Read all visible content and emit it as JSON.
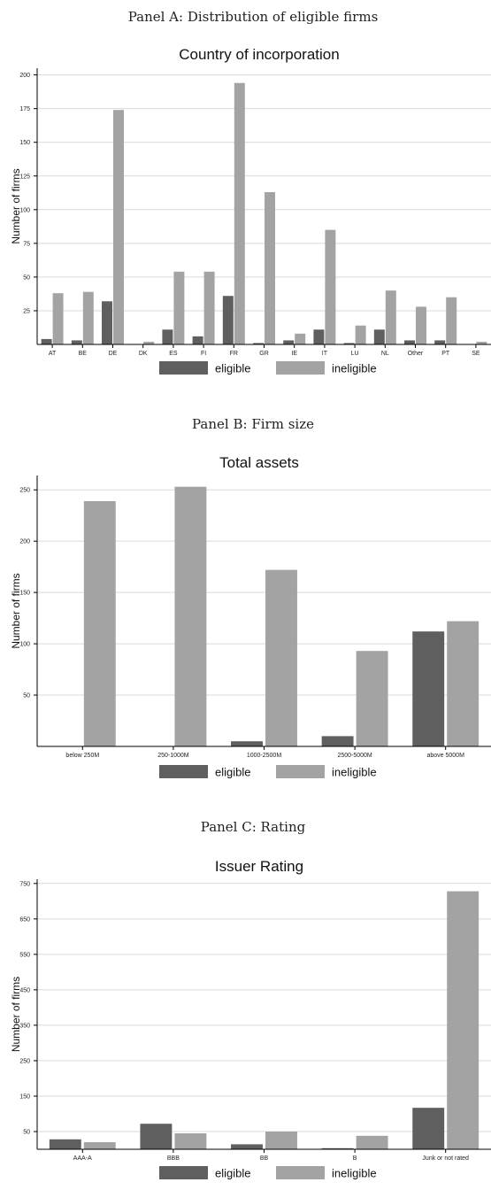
{
  "colors": {
    "eligible": "#5f5f5f",
    "ineligible": "#a3a3a3"
  },
  "panels": [
    {
      "panel_title": "Panel A: Distribution of eligible firms"
    },
    {
      "panel_title": "Panel B: Firm size"
    },
    {
      "panel_title": "Panel C: Rating"
    }
  ],
  "chart_data": [
    {
      "type": "bar",
      "title": "Country of incorporation",
      "ylabel": "Number of firms",
      "xlabel": "",
      "categories": [
        "AT",
        "BE",
        "DE",
        "DK",
        "ES",
        "FI",
        "FR",
        "GR",
        "IE",
        "IT",
        "LU",
        "NL",
        "Other",
        "PT",
        "SE"
      ],
      "series": [
        {
          "name": "eligible",
          "values": [
            4,
            3,
            32,
            0,
            11,
            6,
            36,
            1,
            3,
            11,
            1,
            11,
            3,
            3,
            0
          ]
        },
        {
          "name": "ineligible",
          "values": [
            38,
            39,
            174,
            2,
            54,
            54,
            194,
            113,
            8,
            85,
            14,
            40,
            28,
            35,
            2
          ]
        }
      ],
      "yticks": [
        25,
        50,
        75,
        100,
        125,
        150,
        175,
        200
      ],
      "ylim": [
        0,
        205
      ],
      "grid": true,
      "legend": "bottom"
    },
    {
      "type": "bar",
      "title": "Total assets",
      "ylabel": "Number of firms",
      "xlabel": "",
      "categories": [
        "below 250M",
        "250-1000M",
        "1000-2500M",
        "2500-5000M",
        "above 5000M"
      ],
      "series": [
        {
          "name": "eligible",
          "values": [
            0,
            0,
            5,
            10,
            112
          ]
        },
        {
          "name": "ineligible",
          "values": [
            239,
            253,
            172,
            93,
            122
          ]
        }
      ],
      "yticks": [
        50,
        100,
        150,
        200,
        250
      ],
      "ylim": [
        0,
        264
      ],
      "grid": true,
      "legend": "bottom"
    },
    {
      "type": "bar",
      "title": "Issuer Rating",
      "ylabel": "Number of firms",
      "xlabel": "",
      "categories": [
        "AAA-A",
        "BBB",
        "BB",
        "B",
        "Junk or not rated"
      ],
      "series": [
        {
          "name": "eligible",
          "values": [
            28,
            72,
            14,
            3,
            117
          ]
        },
        {
          "name": "ineligible",
          "values": [
            20,
            45,
            50,
            38,
            728
          ]
        }
      ],
      "yticks": [
        50,
        150,
        250,
        350,
        450,
        550,
        650,
        750
      ],
      "ylim": [
        0,
        762
      ],
      "grid": true,
      "legend": "bottom"
    }
  ]
}
